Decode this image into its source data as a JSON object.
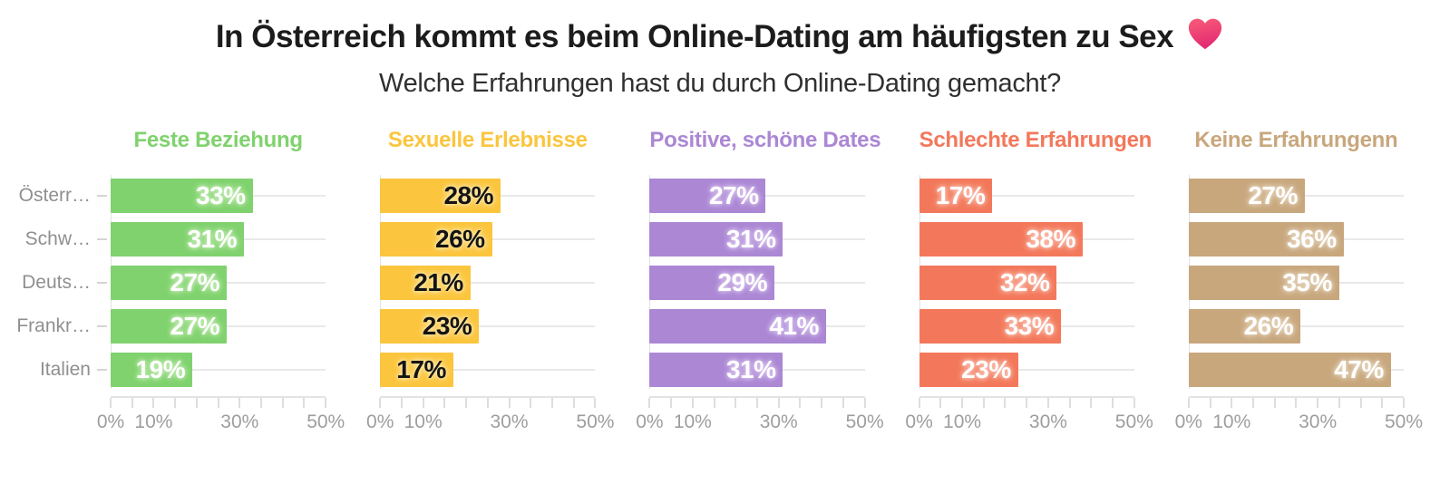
{
  "chart_data": {
    "type": "bar",
    "orientation": "horizontal",
    "title": "In Österreich kommt es beim Online-Dating am häufigsten zu Sex",
    "title_icon": "heart-icon",
    "subtitle": "Welche Erfahrungen hast du durch Online-Dating gemacht?",
    "categories": [
      "Österr…",
      "Schw…",
      "Deuts…",
      "Frankr…",
      "Italien"
    ],
    "xlim": [
      0,
      50
    ],
    "x_minor_tick_step": 5,
    "x_major_ticks": [
      {
        "value": 0,
        "label": "0%"
      },
      {
        "value": 10,
        "label": "10%"
      },
      {
        "value": 30,
        "label": "30%"
      },
      {
        "value": 50,
        "label": "50%"
      }
    ],
    "grid": "horizontal row gridlines, light gray",
    "legend_position": "none (colored panel headers)",
    "series": [
      {
        "name": "Feste Beziehung",
        "color": "#80d26e",
        "halo": "#bdeaae",
        "value_color": "#ffffff",
        "values": [
          33,
          31,
          27,
          27,
          19
        ]
      },
      {
        "name": "Sexuelle Erlebnisse",
        "color": "#fbc53e",
        "halo": "#fde7a6",
        "value_color": "#141414",
        "values": [
          28,
          26,
          21,
          23,
          17
        ]
      },
      {
        "name": "Positive, schöne Dates",
        "color": "#ab87d4",
        "halo": "#d5bfec",
        "value_color": "#ffffff",
        "values": [
          27,
          31,
          29,
          41,
          31
        ]
      },
      {
        "name": "Schlechte Erfahrungen",
        "color": "#f3785b",
        "halo": "#f9bbaa",
        "value_color": "#ffffff",
        "values": [
          17,
          38,
          32,
          33,
          23
        ]
      },
      {
        "name": "Keine Erfahrungenn",
        "color": "#c8a77d",
        "halo": "#e4d3ba",
        "value_color": "#ffffff",
        "values": [
          27,
          36,
          35,
          26,
          47
        ]
      }
    ],
    "heart_colors": {
      "top": "#fa5e79",
      "bottom": "#e22a72"
    }
  }
}
